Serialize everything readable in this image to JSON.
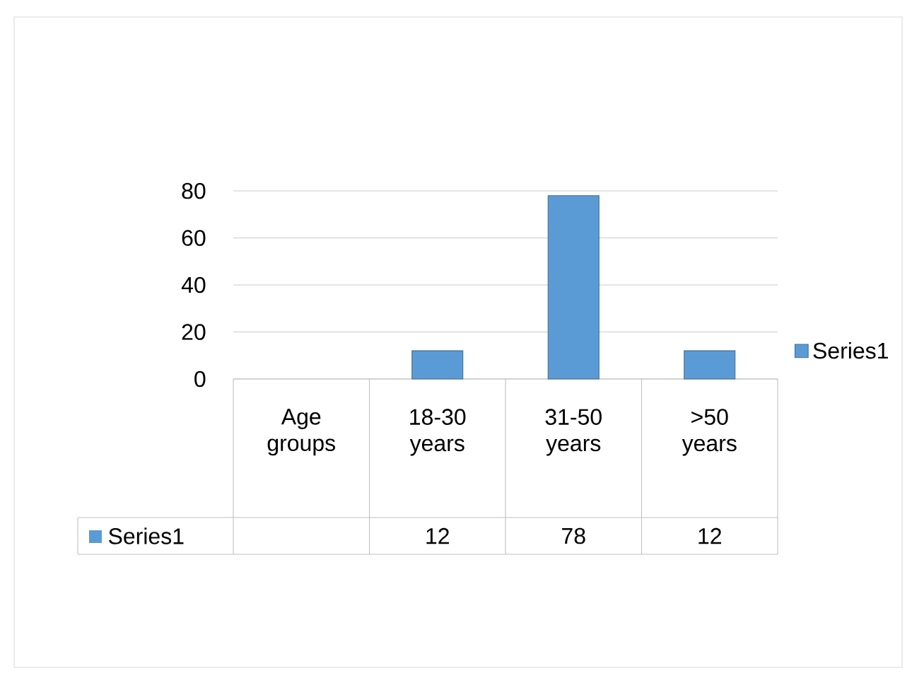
{
  "chart_data": {
    "type": "bar",
    "categories": [
      "Age groups",
      "18-30 years",
      "31-50 years",
      ">50 years"
    ],
    "series": [
      {
        "name": "Series1",
        "color": "#5b9bd5",
        "values": [
          null,
          12,
          78,
          12
        ]
      }
    ],
    "ylim": [
      0,
      80
    ],
    "yticks": [
      0,
      20,
      40,
      60,
      80
    ],
    "grid": "y",
    "legend": "right",
    "data_labels": true
  }
}
